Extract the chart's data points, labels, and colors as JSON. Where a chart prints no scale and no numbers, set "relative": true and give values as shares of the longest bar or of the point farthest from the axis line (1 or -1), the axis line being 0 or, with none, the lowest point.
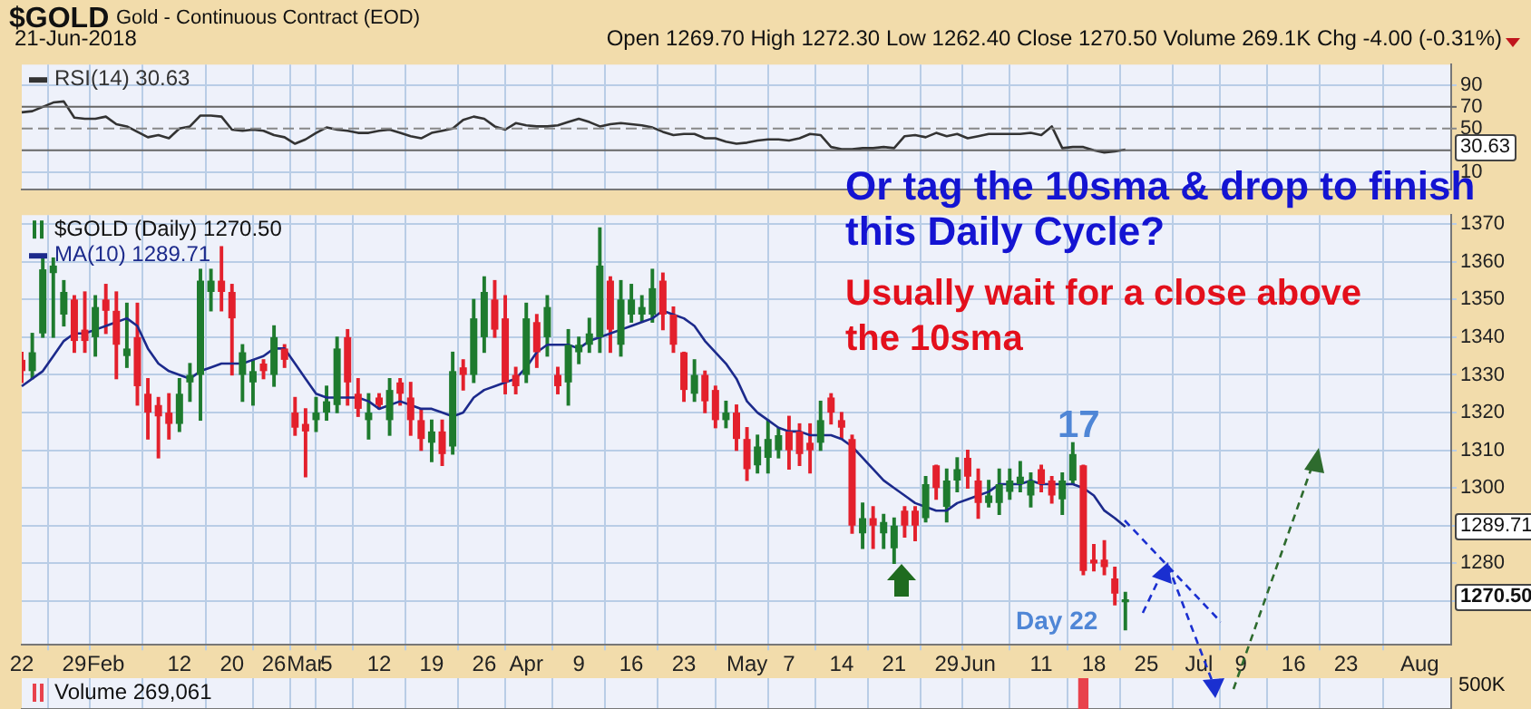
{
  "chart_data": [
    {
      "type": "line",
      "title": "$GOLD",
      "subtitle": "Gold - Continuous Contract (EOD)",
      "annotations": [
        "21-Jun-2018",
        "Open 1269.70 High 1272.30 Low 1262.40 Close 1270.50 Volume 269.1K Chg -4.00 (-0.31%)",
        "30.63"
      ],
      "categories": [
        null,
        null,
        null,
        null,
        null,
        null,
        null,
        null,
        null,
        null,
        null,
        null,
        null,
        null,
        null,
        null,
        null,
        null,
        null,
        null,
        null,
        null,
        null,
        null,
        null,
        null,
        null,
        null,
        null,
        null,
        null,
        null,
        null,
        null,
        null,
        null,
        null,
        null,
        null,
        null,
        null,
        null,
        null,
        null,
        null,
        null,
        null,
        null,
        null,
        null,
        null,
        null,
        null,
        null,
        null,
        null,
        null,
        null,
        null,
        null,
        null,
        null,
        null,
        null,
        null,
        null,
        null,
        null,
        null,
        null,
        null,
        null,
        null,
        null,
        null,
        null,
        null,
        null,
        null,
        null,
        null,
        null,
        null,
        null,
        null,
        null,
        null,
        null,
        null,
        null,
        null,
        null,
        null,
        null,
        null,
        null,
        null,
        null,
        null,
        null,
        null,
        null,
        null,
        null,
        null,
        null,
        null,
        null,
        null,
        null,
        null,
        null,
        null,
        null,
        null,
        null,
        null,
        null,
        null,
        null,
        null,
        null,
        null,
        null,
        null,
        null,
        null,
        null,
        null,
        null,
        null,
        null,
        null,
        null,
        null,
        null,
        null
      ],
      "series": [
        {
          "name": "RSI(14) 30.63",
          "color": "#333333",
          "values": [
            65,
            66,
            70,
            74,
            75,
            60,
            59,
            59,
            61,
            54,
            52,
            47,
            42,
            44,
            41,
            50,
            52,
            62,
            62,
            61,
            49,
            48,
            49,
            48,
            44,
            42,
            36,
            40,
            46,
            51,
            49,
            48,
            46,
            46,
            48,
            49,
            46,
            43,
            41,
            46,
            48,
            50,
            58,
            61,
            59,
            52,
            49,
            55,
            53,
            52,
            52,
            53,
            56,
            59,
            56,
            52,
            54,
            55,
            54,
            53,
            51,
            47,
            44,
            45,
            45,
            41,
            41,
            38,
            36,
            37,
            39,
            40,
            40,
            39,
            41,
            45,
            44,
            33,
            31,
            31,
            32,
            32,
            33,
            32,
            43,
            44,
            42,
            46,
            43,
            45,
            41,
            43,
            45,
            45,
            45,
            45,
            46,
            44,
            52,
            32,
            33,
            33,
            30,
            28,
            29,
            30.63,
            null,
            null,
            null,
            null,
            null,
            null,
            null,
            null,
            null,
            null,
            null,
            null,
            null,
            null,
            null,
            null,
            null,
            null,
            null,
            null,
            null,
            null,
            null,
            null,
            null,
            null,
            null,
            null,
            null,
            null,
            null
          ]
        }
      ],
      "ylim": [
        -6,
        109
      ],
      "yticks": [
        10,
        90
      ],
      "ref_lines": [
        {
          "axis": "y",
          "value": 70,
          "color": "#666666",
          "label": "70"
        },
        {
          "axis": "y",
          "value": 50,
          "color": "#888888",
          "line_style": "dashed",
          "label": "50"
        },
        {
          "axis": "y",
          "value": 30,
          "color": "#666666"
        }
      ],
      "grid": true,
      "legend": "top left",
      "tick_labels": "y"
    },
    {
      "type": "candlestick",
      "annotations": [
        "Or tag the 10sma & drop to finish this Daily Cycle?",
        "Usually wait for a close above the 10sma",
        "17",
        "Day 22",
        "1289.71",
        "1270.50"
      ],
      "categories": [
        "22",
        null,
        null,
        null,
        null,
        "29",
        null,
        null,
        "Feb",
        null,
        null,
        null,
        null,
        null,
        null,
        "12",
        null,
        null,
        null,
        null,
        "20",
        null,
        null,
        null,
        "26",
        null,
        null,
        "Mar",
        null,
        "5",
        null,
        null,
        null,
        null,
        "12",
        null,
        null,
        null,
        null,
        "19",
        null,
        null,
        null,
        null,
        "26",
        null,
        null,
        null,
        "Apr",
        null,
        null,
        null,
        null,
        "9",
        null,
        null,
        null,
        null,
        "16",
        null,
        null,
        null,
        null,
        "23",
        null,
        null,
        null,
        null,
        null,
        "May",
        null,
        null,
        null,
        "7",
        null,
        null,
        null,
        null,
        "14",
        null,
        null,
        null,
        null,
        "21",
        null,
        null,
        null,
        null,
        "29",
        null,
        null,
        "Jun",
        null,
        null,
        null,
        null,
        null,
        "11",
        null,
        null,
        null,
        null,
        "18",
        null,
        null,
        null,
        null,
        "25",
        null,
        null,
        null,
        null,
        "Jul",
        null,
        null,
        null,
        "9",
        null,
        null,
        null,
        null,
        "16",
        null,
        null,
        null,
        null,
        "23",
        null,
        null,
        null,
        null,
        null,
        null,
        "Aug",
        null,
        null,
        null
      ],
      "series": [
        {
          "name": "$GOLD (Daily) 1270.50",
          "ohlc": [
            [
              1334,
              1336,
              1328,
              1331
            ],
            [
              1331,
              1341,
              1329,
              1336
            ],
            [
              1341,
              1361,
              1340,
              1358
            ],
            [
              1357,
              1361,
              1340,
              1359
            ],
            [
              1346,
              1355,
              1343,
              1352
            ],
            [
              1350,
              1351,
              1336,
              1339
            ],
            [
              1342,
              1352,
              1336,
              1339
            ],
            [
              1340,
              1351,
              1335,
              1348
            ],
            [
              1350,
              1354,
              1341,
              1347
            ],
            [
              1347,
              1352,
              1329,
              1338
            ],
            [
              1335,
              1349,
              1332,
              1337
            ],
            [
              1340,
              1349,
              1322,
              1327
            ],
            [
              1325,
              1329,
              1313,
              1320
            ],
            [
              1322,
              1324,
              1308,
              1319
            ],
            [
              1320,
              1325,
              1313,
              1317
            ],
            [
              1317,
              1329,
              1315,
              1325
            ],
            [
              1328,
              1333,
              1323,
              1330
            ],
            [
              1330,
              1358,
              1318,
              1355
            ],
            [
              1352,
              1358,
              1347,
              1355
            ],
            [
              1355,
              1364,
              1347,
              1352
            ],
            [
              1352,
              1354,
              1330,
              1345
            ],
            [
              1330,
              1338,
              1323,
              1336
            ],
            [
              1328,
              1334,
              1322,
              1331
            ],
            [
              1333,
              1334,
              1329,
              1331
            ],
            [
              1330,
              1343,
              1327,
              1340
            ],
            [
              1337,
              1338,
              1332,
              1334
            ],
            [
              1320,
              1324,
              1314,
              1316
            ],
            [
              1317,
              1321,
              1303,
              1315
            ],
            [
              1318,
              1324,
              1315,
              1320
            ],
            [
              1320,
              1327,
              1318,
              1323
            ],
            [
              1322,
              1340,
              1320,
              1337
            ],
            [
              1340,
              1342,
              1322,
              1328
            ],
            [
              1325,
              1329,
              1319,
              1321
            ],
            [
              1318,
              1325,
              1313,
              1320
            ],
            [
              1324,
              1325,
              1321,
              1322
            ],
            [
              1318,
              1329,
              1314,
              1326
            ],
            [
              1328,
              1329,
              1322,
              1325
            ],
            [
              1324,
              1328,
              1314,
              1318
            ],
            [
              1318,
              1321,
              1310,
              1313
            ],
            [
              1312,
              1318,
              1307,
              1315
            ],
            [
              1315,
              1318,
              1306,
              1309
            ],
            [
              1311,
              1336,
              1309,
              1331
            ],
            [
              1332,
              1334,
              1326,
              1330
            ],
            [
              1330,
              1350,
              1328,
              1345
            ],
            [
              1340,
              1356,
              1336,
              1352
            ],
            [
              1350,
              1355,
              1340,
              1342
            ],
            [
              1345,
              1351,
              1325,
              1328
            ],
            [
              1330,
              1332,
              1325,
              1327
            ],
            [
              1330,
              1349,
              1328,
              1345
            ],
            [
              1344,
              1346,
              1332,
              1336
            ],
            [
              1340,
              1351,
              1335,
              1348
            ],
            [
              1330,
              1332,
              1325,
              1327
            ],
            [
              1328,
              1342,
              1322,
              1338
            ],
            [
              1336,
              1340,
              1333,
              1338
            ],
            [
              1338,
              1345,
              1336,
              1341
            ],
            [
              1340,
              1369,
              1336,
              1359
            ],
            [
              1355,
              1356,
              1336,
              1342
            ],
            [
              1338,
              1355,
              1335,
              1350
            ],
            [
              1346,
              1354,
              1344,
              1350
            ],
            [
              1346,
              1351,
              1344,
              1348
            ],
            [
              1346,
              1358,
              1344,
              1353
            ],
            [
              1355,
              1357,
              1342,
              1346
            ],
            [
              1346,
              1348,
              1336,
              1338
            ],
            [
              1336,
              1336,
              1323,
              1326
            ],
            [
              1325,
              1334,
              1323,
              1330
            ],
            [
              1330,
              1331,
              1320,
              1323
            ],
            [
              1326,
              1327,
              1316,
              1318
            ],
            [
              1318,
              1323,
              1316,
              1320
            ],
            [
              1320,
              1322,
              1310,
              1313
            ],
            [
              1313,
              1316,
              1302,
              1305
            ],
            [
              1306,
              1314,
              1304,
              1311
            ],
            [
              1308,
              1318,
              1304,
              1313
            ],
            [
              1310,
              1316,
              1308,
              1314
            ],
            [
              1315,
              1319,
              1305,
              1310
            ],
            [
              1315,
              1317,
              1306,
              1309
            ],
            [
              1312,
              1317,
              1304,
              1310
            ],
            [
              1312,
              1323,
              1310,
              1318
            ],
            [
              1324,
              1325,
              1317,
              1320
            ],
            [
              1318,
              1320,
              1313,
              1316
            ],
            [
              1313,
              1314,
              1288,
              1290
            ],
            [
              1288,
              1296,
              1284,
              1292
            ],
            [
              1292,
              1295,
              1284,
              1290
            ],
            [
              1288,
              1293,
              1284,
              1291
            ],
            [
              1284,
              1292,
              1280,
              1290
            ],
            [
              1294,
              1295,
              1287,
              1290
            ],
            [
              1294,
              1295,
              1286,
              1290
            ],
            [
              1292,
              1303,
              1291,
              1301
            ],
            [
              1306,
              1306,
              1297,
              1300
            ],
            [
              1295,
              1305,
              1291,
              1302
            ],
            [
              1302,
              1308,
              1299,
              1305
            ],
            [
              1308,
              1310,
              1300,
              1303
            ],
            [
              1302,
              1305,
              1292,
              1296
            ],
            [
              1296,
              1302,
              1295,
              1298
            ],
            [
              1296,
              1305,
              1293,
              1301
            ],
            [
              1299,
              1305,
              1297,
              1302
            ],
            [
              1301,
              1307,
              1299,
              1303
            ],
            [
              1298,
              1304,
              1295,
              1302
            ],
            [
              1305,
              1306,
              1299,
              1301
            ],
            [
              1302,
              1303,
              1296,
              1298
            ],
            [
              1297,
              1304,
              1293,
              1302
            ],
            [
              1302,
              1312,
              1301,
              1309
            ],
            [
              1306,
              1306,
              1277,
              1278
            ],
            [
              1281,
              1285,
              1278,
              1280
            ],
            [
              1281,
              1286,
              1277,
              1279
            ],
            [
              1276,
              1279,
              1269,
              1272
            ],
            [
              1269.7,
              1272.3,
              1262.4,
              1270.5
            ],
            null,
            null,
            null,
            null,
            null,
            null,
            null,
            null,
            null,
            null,
            null,
            null,
            null,
            null,
            null,
            null,
            null,
            null,
            null,
            null,
            null,
            null,
            null,
            null,
            null,
            null,
            null,
            null,
            null,
            null,
            null
          ],
          "colors": [
            "#e3202c",
            "#1e7b2e",
            "#1e7b2e",
            "#1e7b2e",
            "#1e7b2e",
            "#e3202c",
            "#e3202c",
            "#1e7b2e",
            "#e3202c",
            "#e3202c",
            "#1e7b2e",
            "#e3202c",
            "#e3202c",
            "#e3202c",
            "#e3202c",
            "#1e7b2e",
            "#1e7b2e",
            "#1e7b2e",
            "#1e7b2e",
            "#e3202c",
            "#e3202c",
            "#1e7b2e",
            "#1e7b2e",
            "#e3202c",
            "#1e7b2e",
            "#e3202c",
            "#e3202c",
            "#e3202c",
            "#1e7b2e",
            "#1e7b2e",
            "#1e7b2e",
            "#e3202c",
            "#e3202c",
            "#1e7b2e",
            "#e3202c",
            "#1e7b2e",
            "#e3202c",
            "#e3202c",
            "#e3202c",
            "#1e7b2e",
            "#e3202c",
            "#1e7b2e",
            "#e3202c",
            "#1e7b2e",
            "#1e7b2e",
            "#e3202c",
            "#e3202c",
            "#e3202c",
            "#1e7b2e",
            "#e3202c",
            "#1e7b2e",
            "#e3202c",
            "#1e7b2e",
            "#1e7b2e",
            "#1e7b2e",
            "#1e7b2e",
            "#e3202c",
            "#1e7b2e",
            "#1e7b2e",
            "#1e7b2e",
            "#1e7b2e",
            "#e3202c",
            "#e3202c",
            "#e3202c",
            "#1e7b2e",
            "#e3202c",
            "#e3202c",
            "#1e7b2e",
            "#e3202c",
            "#e3202c",
            "#1e7b2e",
            "#1e7b2e",
            "#1e7b2e",
            "#e3202c",
            "#e3202c",
            "#e3202c",
            "#1e7b2e",
            "#e3202c",
            "#e3202c",
            "#e3202c",
            "#1e7b2e",
            "#e3202c",
            "#1e7b2e",
            "#1e7b2e",
            "#e3202c",
            "#e3202c",
            "#1e7b2e",
            "#e3202c",
            "#1e7b2e",
            "#1e7b2e",
            "#e3202c",
            "#e3202c",
            "#1e7b2e",
            "#1e7b2e",
            "#1e7b2e",
            "#1e7b2e",
            "#1e7b2e",
            "#e3202c",
            "#e3202c",
            "#1e7b2e",
            "#1e7b2e",
            "#e3202c",
            "#e3202c",
            "#e3202c",
            "#e3202c",
            "#1e7b2e",
            null,
            null,
            null,
            null,
            null,
            null,
            null,
            null,
            null,
            null,
            null,
            null,
            null,
            null,
            null,
            null,
            null,
            null,
            null,
            null,
            null,
            null,
            null,
            null,
            null,
            null,
            null,
            null,
            null,
            null,
            null
          ]
        },
        {
          "name": "MA(10) 1289.71",
          "type": "line",
          "color": "#1c2a8c",
          "values": [
            1327,
            1329,
            1331,
            1335,
            1339,
            1341,
            1341,
            1342,
            1343,
            1344,
            1345,
            1343,
            1337,
            1333,
            1331,
            1330,
            1329,
            1331,
            1332,
            1333,
            1333,
            1333,
            1334,
            1335,
            1337,
            1337,
            1333,
            1329,
            1325,
            1324,
            1324,
            1324,
            1324,
            1323,
            1321,
            1322,
            1323,
            1322,
            1321,
            1321,
            1320,
            1319,
            1320,
            1324,
            1326,
            1327,
            1328,
            1329,
            1332,
            1336,
            1338,
            1338,
            1338,
            1337,
            1339,
            1340,
            1341,
            1342,
            1343,
            1344,
            1345,
            1347,
            1346,
            1345,
            1343,
            1339,
            1336,
            1333,
            1329,
            1323,
            1320,
            1318,
            1316,
            1315,
            1315,
            1314,
            1314,
            1314,
            1313,
            1311,
            1308,
            1305,
            1302,
            1300,
            1298,
            1296,
            1295,
            1294,
            1294,
            1296,
            1297,
            1298,
            1299,
            1301,
            1301,
            1301,
            1302,
            1301,
            1301,
            1301,
            1301,
            1300,
            1298,
            1294,
            1292,
            1289.71,
            null,
            null,
            null,
            null,
            null,
            null,
            null,
            null,
            null,
            null,
            null,
            null,
            null,
            null,
            null,
            null,
            null,
            null,
            null,
            null,
            null,
            null,
            null,
            null,
            null,
            null,
            null,
            null,
            null,
            null,
            null
          ]
        }
      ],
      "ylim": [
        1258.4,
        1372.4
      ],
      "yticks": [
        {
          "value": 1270,
          "label": null
        },
        1280,
        {
          "value": 1290,
          "label": null
        },
        1300,
        1310,
        1320,
        1330,
        1340,
        1350,
        1360,
        1370
      ],
      "grid": true,
      "legend": "top left"
    },
    {
      "type": "bar",
      "relative": true,
      "annotations": [
        "500K"
      ],
      "categories": [
        null,
        null,
        null,
        null,
        null,
        null,
        null,
        null,
        null,
        null,
        null,
        null,
        null,
        null,
        null,
        null,
        null,
        null,
        null,
        null,
        null,
        null,
        null,
        null,
        null,
        null,
        null,
        null,
        null,
        null,
        null,
        null,
        null,
        null,
        null,
        null,
        null,
        null,
        null,
        null,
        null,
        null,
        null,
        null,
        null,
        null,
        null,
        null,
        null,
        null,
        null,
        null,
        null,
        null,
        null,
        null,
        null,
        null,
        null,
        null,
        null,
        null,
        null,
        null,
        null,
        null,
        null,
        null,
        null,
        null,
        null,
        null,
        null,
        null,
        null,
        null,
        null,
        null,
        null,
        null,
        null,
        null,
        null,
        null,
        null,
        null,
        null,
        null,
        null,
        null,
        null,
        null,
        null,
        null,
        null,
        null,
        null,
        null,
        null,
        null,
        null,
        null,
        null,
        null,
        null,
        null,
        null,
        null,
        null,
        null,
        null,
        null,
        null,
        null,
        null,
        null,
        null,
        null,
        null,
        null,
        null,
        null,
        null,
        null,
        null,
        null,
        null,
        null,
        null,
        null,
        null,
        null,
        null,
        null,
        null,
        null,
        null
      ],
      "series": [
        {
          "name": "Volume 269,061",
          "color": "#e8424c",
          "values": [
            null,
            null,
            null,
            null,
            null,
            null,
            null,
            null,
            null,
            null,
            null,
            null,
            null,
            null,
            null,
            null,
            null,
            null,
            null,
            null,
            null,
            null,
            null,
            null,
            null,
            null,
            null,
            null,
            null,
            null,
            null,
            null,
            null,
            null,
            null,
            null,
            null,
            null,
            null,
            null,
            null,
            null,
            null,
            null,
            null,
            null,
            null,
            null,
            null,
            null,
            null,
            null,
            null,
            null,
            null,
            null,
            null,
            null,
            null,
            null,
            null,
            null,
            null,
            null,
            null,
            null,
            null,
            null,
            null,
            null,
            null,
            null,
            null,
            null,
            null,
            null,
            null,
            null,
            null,
            null,
            null,
            null,
            null,
            null,
            null,
            null,
            null,
            null,
            null,
            null,
            null,
            null,
            null,
            null,
            null,
            null,
            null,
            null,
            null,
            null,
            null,
            1,
            null,
            null,
            null,
            null,
            null,
            null,
            null,
            null,
            null,
            null,
            null,
            null,
            null,
            null,
            null,
            null,
            null,
            null,
            null,
            null,
            null,
            null,
            null,
            null,
            null,
            null,
            null,
            null,
            null,
            null,
            null,
            null,
            null,
            null,
            null
          ]
        }
      ],
      "grid": "x",
      "legend": "top left",
      "tick_labels": "y"
    }
  ]
}
